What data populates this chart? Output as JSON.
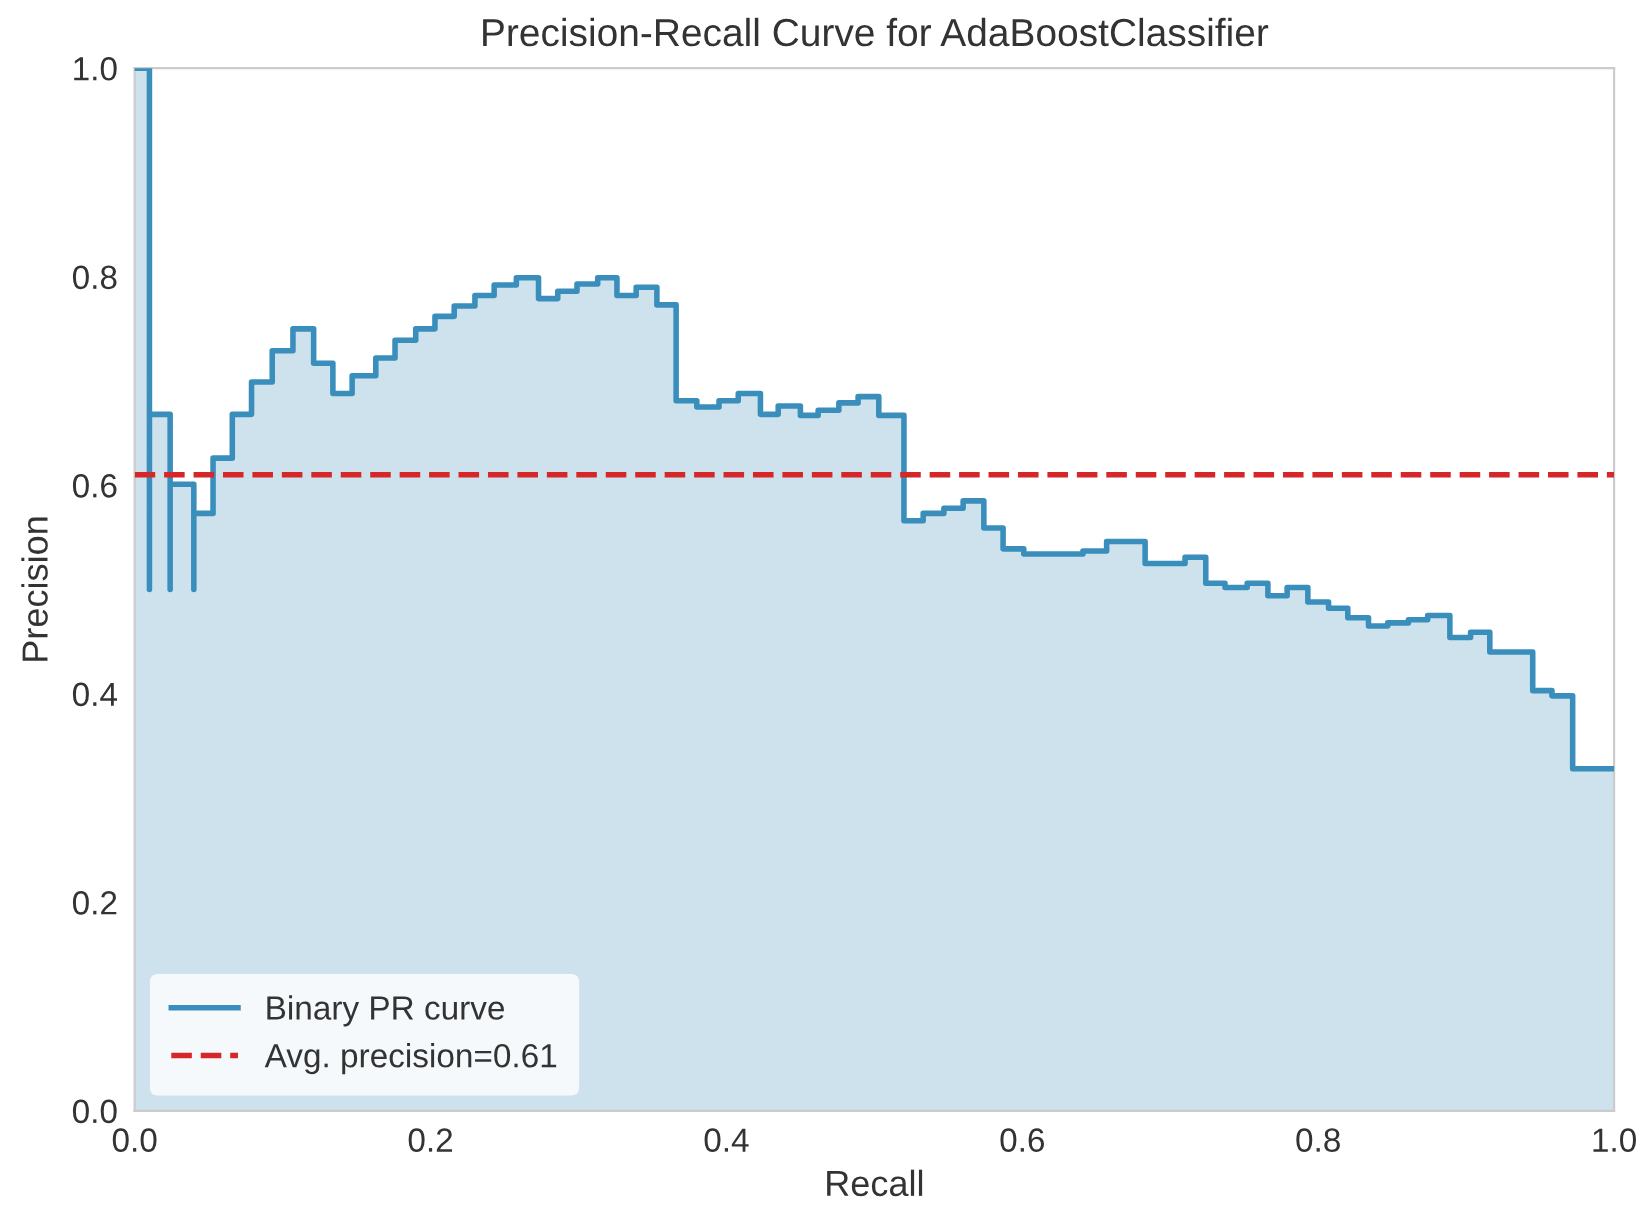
{
  "chart_data": {
    "type": "step",
    "title": "Precision-Recall Curve for AdaBoostClassifier",
    "xlabel": "Recall",
    "ylabel": "Precision",
    "x": [
      0,
      0.01,
      0.01,
      0.024,
      0.024,
      0.04,
      0.04,
      0.053,
      0.066,
      0.079,
      0.093,
      0.107,
      0.121,
      0.134,
      0.147,
      0.163,
      0.176,
      0.19,
      0.203,
      0.216,
      0.23,
      0.243,
      0.258,
      0.273,
      0.286,
      0.299,
      0.313,
      0.326,
      0.339,
      0.353,
      0.366,
      0.38,
      0.395,
      0.408,
      0.423,
      0.435,
      0.45,
      0.462,
      0.476,
      0.489,
      0.503,
      0.52,
      0.533,
      0.547,
      0.56,
      0.574,
      0.587,
      0.601,
      0.641,
      0.657,
      0.683,
      0.71,
      0.724,
      0.737,
      0.752,
      0.766,
      0.779,
      0.793,
      0.807,
      0.82,
      0.834,
      0.847,
      0.861,
      0.874,
      0.889,
      0.903,
      0.916,
      0.945,
      0.958,
      0.972,
      1.0
    ],
    "series": [
      {
        "type": "area",
        "color": "#cde2ec",
        "values": [
          1.0,
          0.5,
          0.668,
          0.5,
          0.601,
          0.5,
          0.573,
          0.626,
          0.668,
          0.699,
          0.729,
          0.75,
          0.717,
          0.688,
          0.705,
          0.722,
          0.739,
          0.75,
          0.762,
          0.772,
          0.782,
          0.792,
          0.799,
          0.779,
          0.786,
          0.793,
          0.799,
          0.782,
          0.79,
          0.773,
          0.681,
          0.675,
          0.681,
          0.688,
          0.668,
          0.676,
          0.667,
          0.672,
          0.679,
          0.685,
          0.667,
          0.566,
          0.573,
          0.578,
          0.585,
          0.559,
          0.539,
          0.534,
          0.537,
          0.546,
          0.525,
          0.531,
          0.506,
          0.502,
          0.506,
          0.494,
          0.502,
          0.488,
          0.482,
          0.473,
          0.465,
          0.468,
          0.471,
          0.475,
          0.454,
          0.459,
          0.44,
          0.403,
          0.398,
          0.328,
          0.328
        ]
      },
      {
        "name": "Binary PR curve",
        "color": "#3a8ebb",
        "values": [
          1.0,
          0.5,
          0.668,
          0.5,
          0.601,
          0.5,
          0.573,
          0.626,
          0.668,
          0.699,
          0.729,
          0.75,
          0.717,
          0.688,
          0.705,
          0.722,
          0.739,
          0.75,
          0.762,
          0.772,
          0.782,
          0.792,
          0.799,
          0.779,
          0.786,
          0.793,
          0.799,
          0.782,
          0.79,
          0.773,
          0.681,
          0.675,
          0.681,
          0.688,
          0.668,
          0.676,
          0.667,
          0.672,
          0.679,
          0.685,
          0.667,
          0.566,
          0.573,
          0.578,
          0.585,
          0.559,
          0.539,
          0.534,
          0.537,
          0.546,
          0.525,
          0.531,
          0.506,
          0.502,
          0.506,
          0.494,
          0.502,
          0.488,
          0.482,
          0.473,
          0.465,
          0.468,
          0.471,
          0.475,
          0.454,
          0.459,
          0.44,
          0.403,
          0.398,
          0.328,
          0.328
        ]
      }
    ],
    "ref_lines": [
      {
        "axis": "y",
        "value": 0.61,
        "label": "Avg. precision=0.61",
        "color": "#d62728",
        "line_style": "dashed"
      }
    ],
    "xlim": [
      0.0,
      1.0
    ],
    "ylim": [
      0.0,
      1.0
    ],
    "xticks": [
      {
        "value": 0,
        "label": "0.0"
      },
      0.2,
      0.4,
      0.6,
      0.8,
      {
        "value": 1,
        "label": "1.0"
      }
    ],
    "yticks": [
      {
        "value": 0,
        "label": "0.0"
      },
      0.2,
      0.4,
      0.6,
      0.8,
      {
        "value": 1,
        "label": "1.0"
      }
    ],
    "grid": false,
    "legend": "bottom left"
  }
}
